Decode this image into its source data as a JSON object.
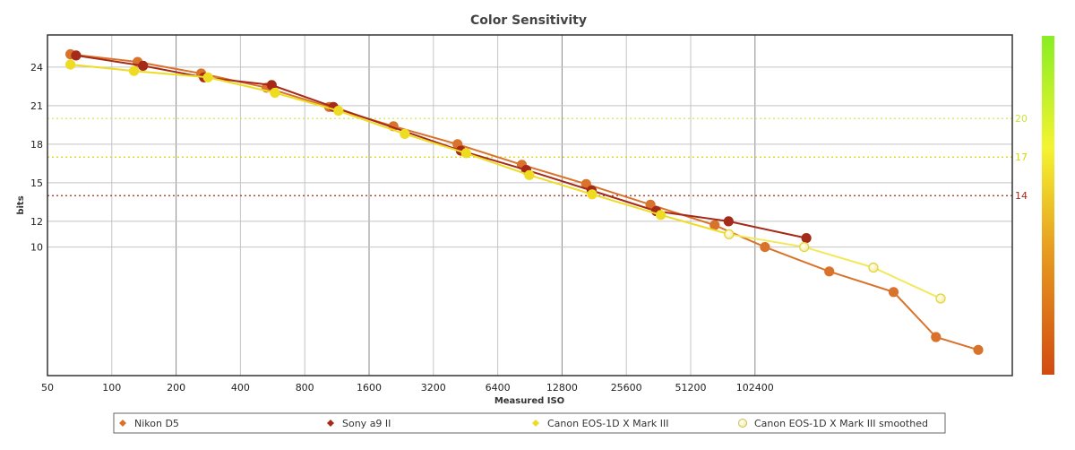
{
  "chart_data": {
    "type": "line",
    "title": "Color Sensitivity",
    "xlabel": "Measured ISO",
    "ylabel": "bits",
    "x_scale": "log2",
    "xlim": [
      50,
      1638400
    ],
    "ylim": [
      0,
      26.5
    ],
    "x_ticks": [
      "50",
      "100",
      "200",
      "400",
      "800",
      "1600",
      "3200",
      "6400",
      "12800",
      "25600",
      "51200",
      "102400"
    ],
    "y_ticks": [
      10,
      12,
      15,
      18,
      21,
      24
    ],
    "grid": true,
    "legend_position": "bottom",
    "reference_lines": [
      {
        "value": 20,
        "label": "20",
        "color": "#c8e63c"
      },
      {
        "value": 17,
        "label": "17",
        "color": "#d8d800"
      },
      {
        "value": 14,
        "label": "14",
        "color": "#a52a1a"
      }
    ],
    "colorbar": true,
    "series": [
      {
        "name": "Nikon D5",
        "color": "#d9722a",
        "x": [
          64,
          132,
          262,
          530,
          1040,
          2080,
          4150,
          8300,
          16600,
          33200,
          66300,
          114000,
          228000,
          456000,
          720000,
          1135000
        ],
        "y": [
          25.0,
          24.4,
          23.5,
          22.4,
          20.9,
          19.4,
          18.0,
          16.4,
          14.9,
          13.3,
          11.7,
          10.0,
          8.1,
          6.5,
          3.0,
          2.0
        ]
      },
      {
        "name": "Sony a9 II",
        "color": "#a52a1a",
        "x": [
          68,
          140,
          270,
          560,
          1090,
          4300,
          8700,
          17600,
          35300,
          77000,
          178000
        ],
        "y": [
          24.9,
          24.1,
          23.2,
          22.6,
          20.9,
          17.5,
          16.0,
          14.4,
          12.8,
          12.0,
          10.7
        ]
      },
      {
        "name": "Canon EOS-1D X Mark III",
        "color": "#eedc22",
        "x": [
          64,
          127,
          282,
          580,
          1150,
          2350,
          4550,
          9000,
          17700,
          37100,
          77400
        ],
        "y": [
          24.2,
          23.7,
          23.2,
          22.0,
          20.6,
          18.8,
          17.3,
          15.6,
          14.1,
          12.5,
          11.0
        ]
      },
      {
        "name": "Canon EOS-1D X Mark III smoothed",
        "color": "#f2e85a",
        "hollow": true,
        "x": [
          77400,
          174000,
          367000,
          757000
        ],
        "y": [
          11.0,
          10.0,
          8.4,
          6.0
        ]
      }
    ]
  }
}
